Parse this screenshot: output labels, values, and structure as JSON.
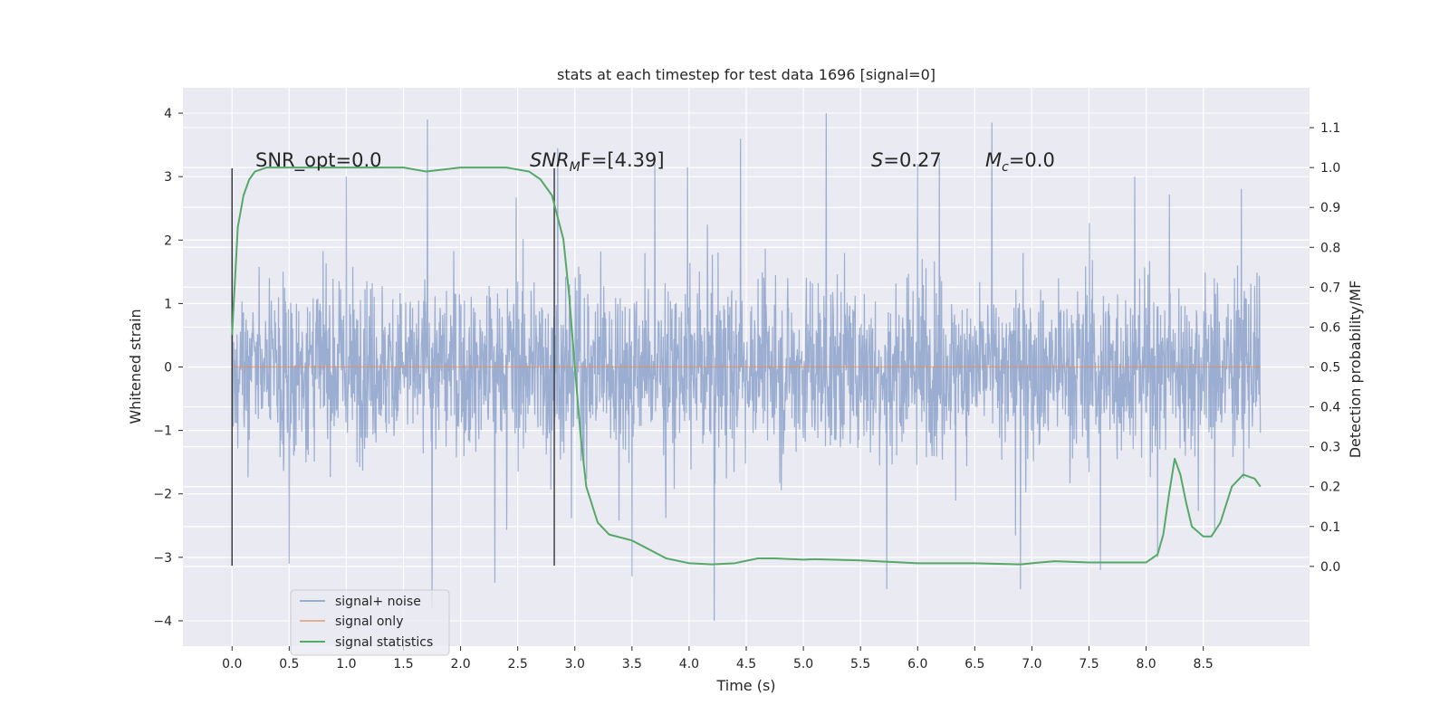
{
  "chart_data": {
    "type": "line",
    "title": "stats at each timestep for test data 1696 [signal=0]",
    "xlabel": "Time (s)",
    "ylabel": "Whitened strain",
    "ylabel_right": "Detection probability/MF",
    "xlim": [
      -0.43,
      9.43
    ],
    "ylim": [
      -4.4,
      4.4
    ],
    "ylim_right": [
      -0.2,
      1.2
    ],
    "xticks": [
      "0.0",
      "0.5",
      "1.0",
      "1.5",
      "2.0",
      "2.5",
      "3.0",
      "3.5",
      "4.0",
      "4.5",
      "5.0",
      "5.5",
      "6.0",
      "6.5",
      "7.0",
      "7.5",
      "8.0",
      "8.5"
    ],
    "yticks": [
      "4",
      "3",
      "2",
      "1",
      "0",
      "−1",
      "−2",
      "−3",
      "−4"
    ],
    "yticks_right": [
      "1.1",
      "1.0",
      "0.9",
      "0.8",
      "0.7",
      "0.6",
      "0.5",
      "0.4",
      "0.3",
      "0.2",
      "0.1",
      "0.0"
    ],
    "grid": true,
    "legend_position": "bottom-left",
    "colors": {
      "background": "#eaeaf2",
      "grid": "#ffffff",
      "noise": "#4c72b0",
      "signal": "#dd8452",
      "stats": "#55a868",
      "vline": "#404040"
    },
    "annotations": {
      "snr_opt": "SNR_opt=0.0",
      "snr_mf_base": "SNR",
      "snr_mf_sub": "M",
      "snr_mf_rest": "F=[4.39]",
      "s_base": "S",
      "s_rest": "=0.27",
      "mc_base": "M",
      "mc_sub": "c",
      "mc_rest": "=0.0"
    },
    "vertical_lines_x": [
      0.0,
      2.82
    ],
    "series": [
      {
        "name": "signal+ noise",
        "kind": "noise",
        "x_range": [
          0.0,
          9.0
        ],
        "envelope": 1.25,
        "spikes": [
          [
            1.71,
            3.9
          ],
          [
            5.2,
            4.0
          ],
          [
            6.65,
            3.85
          ],
          [
            4.45,
            3.6
          ],
          [
            2.85,
            3.45
          ],
          [
            0.0,
            3.1
          ],
          [
            1.0,
            3.0
          ],
          [
            3.7,
            3.2
          ],
          [
            6.0,
            3.2
          ],
          [
            7.9,
            3.0
          ],
          [
            1.75,
            -3.8
          ],
          [
            2.3,
            -3.4
          ],
          [
            4.22,
            -4.0
          ],
          [
            5.73,
            -3.5
          ],
          [
            6.9,
            -3.5
          ],
          [
            0.5,
            -3.1
          ],
          [
            3.5,
            -3.3
          ],
          [
            7.6,
            -3.2
          ],
          [
            8.1,
            -3.0
          ],
          [
            8.6,
            -2.6
          ]
        ]
      },
      {
        "name": "signal only",
        "kind": "signal",
        "x": [
          0.0,
          9.0
        ],
        "y": [
          0.0,
          0.0
        ]
      },
      {
        "name": "signal statistics",
        "kind": "stats",
        "x": [
          0.0,
          0.05,
          0.1,
          0.15,
          0.2,
          0.3,
          0.5,
          1.0,
          1.5,
          1.7,
          2.0,
          2.4,
          2.6,
          2.7,
          2.8,
          2.9,
          2.95,
          3.0,
          3.05,
          3.1,
          3.2,
          3.3,
          3.5,
          3.6,
          3.8,
          4.0,
          4.2,
          4.4,
          4.6,
          4.75,
          5.0,
          5.1,
          5.5,
          6.0,
          6.5,
          6.9,
          7.0,
          7.2,
          7.5,
          8.0,
          8.1,
          8.15,
          8.2,
          8.25,
          8.3,
          8.35,
          8.4,
          8.5,
          8.57,
          8.65,
          8.75,
          8.85,
          8.95,
          9.0
        ],
        "y": [
          0.58,
          0.85,
          0.93,
          0.97,
          0.99,
          1.0,
          1.0,
          1.0,
          1.0,
          0.99,
          1.0,
          1.0,
          0.99,
          0.97,
          0.93,
          0.82,
          0.68,
          0.5,
          0.33,
          0.2,
          0.11,
          0.08,
          0.065,
          0.05,
          0.02,
          0.008,
          0.005,
          0.008,
          0.02,
          0.02,
          0.017,
          0.018,
          0.015,
          0.008,
          0.008,
          0.005,
          0.008,
          0.013,
          0.01,
          0.01,
          0.03,
          0.08,
          0.18,
          0.27,
          0.23,
          0.16,
          0.1,
          0.075,
          0.075,
          0.11,
          0.2,
          0.23,
          0.22,
          0.2
        ]
      }
    ]
  }
}
